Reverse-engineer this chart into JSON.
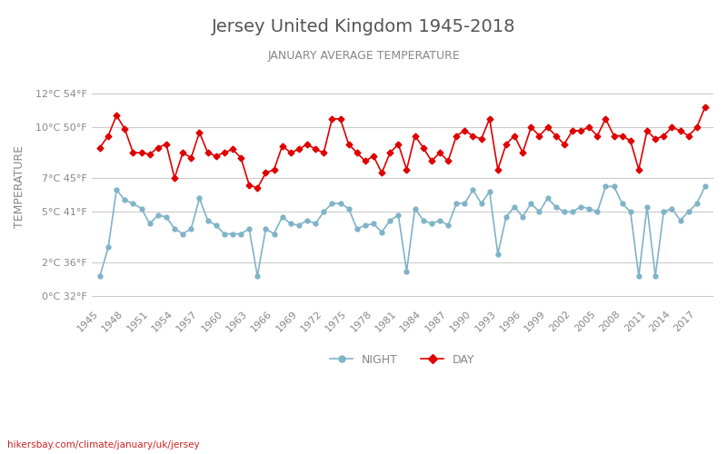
{
  "title": "Jersey United Kingdom 1945-2018",
  "subtitle": "JANUARY AVERAGE TEMPERATURE",
  "ylabel": "TEMPERATURE",
  "watermark": "hikersbay.com/climate/january/uk/jersey",
  "legend_night": "NIGHT",
  "legend_day": "DAY",
  "years": [
    1945,
    1946,
    1947,
    1948,
    1949,
    1950,
    1951,
    1952,
    1953,
    1954,
    1955,
    1956,
    1957,
    1958,
    1959,
    1960,
    1961,
    1962,
    1963,
    1964,
    1965,
    1966,
    1967,
    1968,
    1969,
    1970,
    1971,
    1972,
    1973,
    1974,
    1975,
    1976,
    1977,
    1978,
    1979,
    1980,
    1981,
    1982,
    1983,
    1984,
    1985,
    1986,
    1987,
    1988,
    1989,
    1990,
    1991,
    1992,
    1993,
    1994,
    1995,
    1996,
    1997,
    1998,
    1999,
    2000,
    2001,
    2002,
    2003,
    2004,
    2005,
    2006,
    2007,
    2008,
    2009,
    2010,
    2011,
    2012,
    2013,
    2014,
    2015,
    2016,
    2017,
    2018
  ],
  "day": [
    8.8,
    9.5,
    10.7,
    9.9,
    8.5,
    8.5,
    8.4,
    8.8,
    9.0,
    7.0,
    8.5,
    8.2,
    9.7,
    8.5,
    8.3,
    8.5,
    8.7,
    8.2,
    6.6,
    6.4,
    7.3,
    7.5,
    8.9,
    8.5,
    8.7,
    9.0,
    8.7,
    8.5,
    10.5,
    10.5,
    9.0,
    8.5,
    8.0,
    8.3,
    7.3,
    8.5,
    9.0,
    7.5,
    9.5,
    8.8,
    8.0,
    8.5,
    8.0,
    9.5,
    9.8,
    9.5,
    9.3,
    10.5,
    7.5,
    9.0,
    9.5,
    8.5,
    10.0,
    9.5,
    10.0,
    9.5,
    9.0,
    9.8,
    9.8,
    10.0,
    9.5,
    10.5,
    9.5,
    9.5,
    9.2,
    7.5,
    9.8,
    9.3,
    9.5,
    10.0,
    9.8,
    9.5,
    10.0,
    11.2
  ],
  "night": [
    1.2,
    2.9,
    6.3,
    5.7,
    5.5,
    5.2,
    4.3,
    4.8,
    4.7,
    4.0,
    3.7,
    4.0,
    5.8,
    4.5,
    4.2,
    3.7,
    3.7,
    3.7,
    4.0,
    1.2,
    4.0,
    3.7,
    4.7,
    4.3,
    4.2,
    4.5,
    4.3,
    5.0,
    5.5,
    5.5,
    5.2,
    4.0,
    4.2,
    4.3,
    3.8,
    4.5,
    4.8,
    1.5,
    5.2,
    4.5,
    4.3,
    4.5,
    4.2,
    5.5,
    5.5,
    6.3,
    5.5,
    6.2,
    2.5,
    4.7,
    5.3,
    4.7,
    5.5,
    5.0,
    5.8,
    5.3,
    5.0,
    5.0,
    5.3,
    5.2,
    5.0,
    6.5,
    6.5,
    5.5,
    5.0,
    1.2,
    5.3,
    1.2,
    5.0,
    5.2,
    4.5,
    5.0,
    5.5,
    6.5
  ],
  "day_color": "#e00000",
  "night_color": "#7fb3c8",
  "background_color": "#ffffff",
  "grid_color": "#cccccc",
  "title_color": "#555555",
  "subtitle_color": "#888888",
  "ylabel_color": "#888888",
  "tick_color": "#888888",
  "yticks_c": [
    0,
    2,
    5,
    7,
    10,
    12
  ],
  "yticks_f": [
    32,
    36,
    41,
    45,
    50,
    54
  ],
  "ylim": [
    -0.5,
    13.5
  ],
  "watermark_color": "#cc2222",
  "figsize": [
    8.0,
    5.0
  ],
  "dpi": 100
}
